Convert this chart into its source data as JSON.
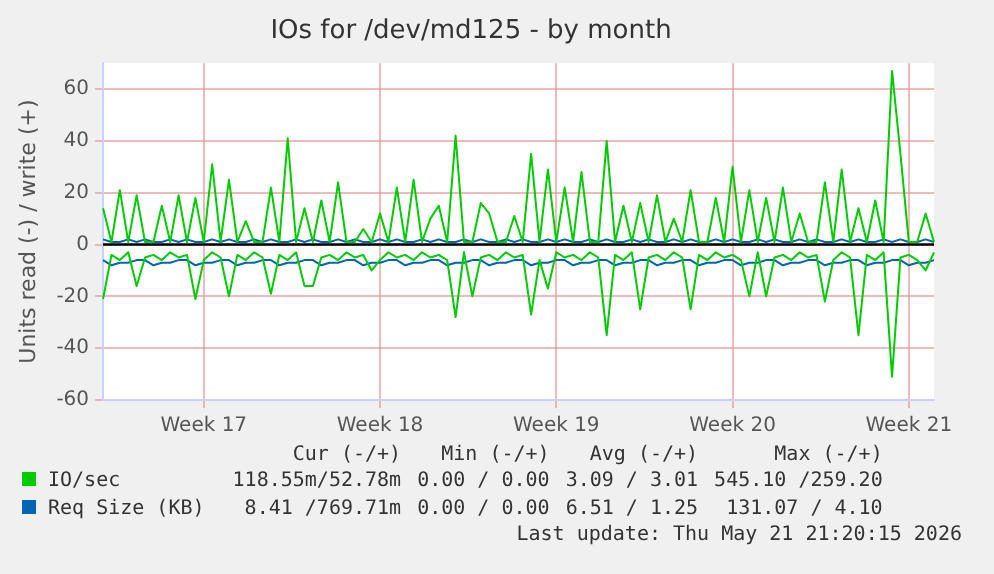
{
  "chart_data": {
    "type": "line",
    "title": "IOs for /dev/md125 - by month",
    "ylabel": "Units read (-) / write (+)",
    "categories": [
      null,
      null,
      null,
      null,
      null,
      null,
      null,
      null,
      null,
      null,
      null,
      null,
      "Week 17",
      null,
      null,
      null,
      null,
      null,
      null,
      null,
      null,
      null,
      null,
      null,
      null,
      null,
      null,
      null,
      null,
      null,
      null,
      null,
      null,
      "Week 18",
      null,
      null,
      null,
      null,
      null,
      null,
      null,
      null,
      null,
      null,
      null,
      null,
      null,
      null,
      null,
      null,
      null,
      null,
      null,
      null,
      "Week 19",
      null,
      null,
      null,
      null,
      null,
      null,
      null,
      null,
      null,
      null,
      null,
      null,
      null,
      null,
      null,
      null,
      null,
      null,
      null,
      null,
      "Week 20",
      null,
      null,
      null,
      null,
      null,
      null,
      null,
      null,
      null,
      null,
      null,
      null,
      null,
      null,
      null,
      null,
      null,
      null,
      null,
      null,
      "Week 21",
      null,
      null,
      null
    ],
    "ylim": [
      -60,
      70
    ],
    "yticks": [
      -60,
      -40,
      -20,
      0,
      20,
      40,
      60
    ],
    "grid": true,
    "legend": "bottom",
    "series": [
      {
        "name": "IO/sec",
        "color": "#00cc00",
        "values": [
          14,
          1,
          21,
          1,
          19,
          1,
          1,
          15,
          1,
          19,
          1,
          18,
          1,
          31,
          1,
          25,
          1,
          9,
          1,
          1,
          22,
          1,
          41,
          1,
          14,
          1,
          17,
          1,
          24,
          1,
          1,
          6,
          1,
          12,
          1,
          22,
          1,
          25,
          1,
          10,
          15,
          1,
          42,
          1,
          1,
          16,
          12,
          1,
          1,
          11,
          1,
          35,
          1,
          29,
          1,
          22,
          1,
          28,
          1,
          1,
          40,
          1,
          15,
          1,
          16,
          1,
          19,
          1,
          10,
          1,
          21,
          1,
          1,
          18,
          1,
          30,
          1,
          21,
          1,
          18,
          1,
          22,
          1,
          12,
          1,
          1,
          24,
          1,
          29,
          1,
          14,
          1,
          17,
          1,
          67,
          35,
          1,
          1,
          12,
          1
        ]
      },
      {
        "color": "#00cc00",
        "values": [
          -21,
          -4,
          -6,
          -3,
          -16,
          -5,
          -4,
          -6,
          -3,
          -5,
          -4,
          -21,
          -6,
          -3,
          -5,
          -20,
          -4,
          -6,
          -3,
          -5,
          -19,
          -4,
          -6,
          -3,
          -16,
          -16,
          -5,
          -4,
          -6,
          -3,
          -5,
          -4,
          -10,
          -6,
          -3,
          -5,
          -4,
          -6,
          -3,
          -5,
          -4,
          -6,
          -28,
          -3,
          -20,
          -5,
          -4,
          -6,
          -3,
          -5,
          -4,
          -27,
          -6,
          -17,
          -3,
          -5,
          -4,
          -6,
          -3,
          -5,
          -35,
          -4,
          -6,
          -3,
          -25,
          -5,
          -4,
          -6,
          -3,
          -5,
          -25,
          -4,
          -6,
          -3,
          -5,
          -4,
          -6,
          -20,
          -3,
          -20,
          -5,
          -4,
          -6,
          -3,
          -5,
          -4,
          -22,
          -6,
          -3,
          -5,
          -35,
          -4,
          -6,
          -3,
          -51,
          -5,
          -4,
          -6,
          -10,
          -3
        ]
      },
      {
        "name": "Req Size (KB)",
        "color": "#0066b3",
        "values": [
          2,
          1,
          1,
          2,
          1,
          2,
          1,
          1,
          2,
          1,
          2,
          1,
          1,
          2,
          1,
          2,
          1,
          1,
          2,
          1,
          2,
          1,
          1,
          2,
          1,
          2,
          1,
          1,
          2,
          1,
          2,
          1,
          1,
          2,
          1,
          2,
          1,
          1,
          2,
          1,
          2,
          1,
          1,
          2,
          1,
          2,
          1,
          1,
          2,
          1,
          2,
          1,
          1,
          2,
          1,
          2,
          1,
          1,
          2,
          1,
          2,
          1,
          1,
          2,
          1,
          2,
          1,
          1,
          2,
          1,
          2,
          1,
          1,
          2,
          1,
          2,
          1,
          1,
          2,
          1,
          2,
          1,
          1,
          2,
          1,
          2,
          1,
          1,
          2,
          1,
          2,
          1,
          1,
          2,
          1,
          2,
          1,
          1,
          2,
          1
        ]
      },
      {
        "color": "#0066b3",
        "values": [
          -6,
          -8,
          -7,
          -7,
          -6,
          -6,
          -8,
          -7,
          -7,
          -6,
          -6,
          -8,
          -7,
          -7,
          -6,
          -6,
          -8,
          -7,
          -7,
          -6,
          -6,
          -8,
          -7,
          -7,
          -6,
          -6,
          -8,
          -7,
          -7,
          -6,
          -6,
          -8,
          -7,
          -7,
          -6,
          -6,
          -8,
          -7,
          -7,
          -6,
          -6,
          -8,
          -7,
          -7,
          -6,
          -6,
          -8,
          -7,
          -7,
          -6,
          -6,
          -8,
          -7,
          -7,
          -6,
          -6,
          -8,
          -7,
          -7,
          -6,
          -6,
          -8,
          -7,
          -7,
          -6,
          -6,
          -8,
          -7,
          -7,
          -6,
          -6,
          -8,
          -7,
          -7,
          -6,
          -6,
          -8,
          -7,
          -7,
          -6,
          -6,
          -8,
          -7,
          -7,
          -6,
          -6,
          -8,
          -7,
          -7,
          -6,
          -6,
          -8,
          -7,
          -7,
          -6,
          -6,
          -8,
          -7,
          -7,
          -6
        ]
      }
    ],
    "annotations": [
      "Cur (-/+)",
      "Min (-/+)",
      "Avg (-/+)",
      "Max (-/+)",
      "118.55m/52.78m",
      "0.00 / 0.00",
      "3.09 / 3.01",
      "545.10 /259.20",
      "8.41 /769.71m",
      "0.00 / 0.00",
      "6.51 / 1.25",
      "131.07 / 4.10",
      "Last update: Thu May 21 21:20:15 2026"
    ]
  }
}
